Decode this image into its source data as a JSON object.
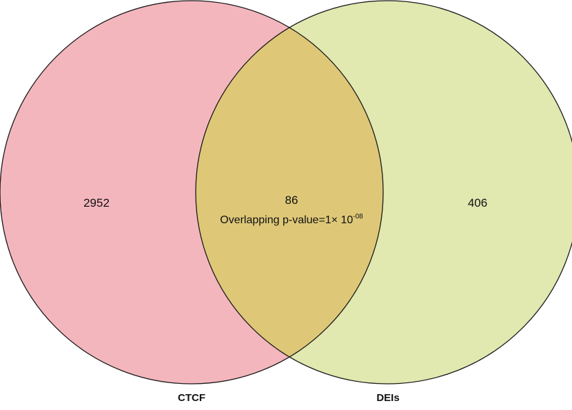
{
  "sets": {
    "left": {
      "label": "CTCF",
      "only_count": "2952",
      "color": "#f4b6bd"
    },
    "right": {
      "label": "DEIs",
      "only_count": "406",
      "color": "#e1e8b0"
    }
  },
  "overlap": {
    "count": "86",
    "pvalue_prefix": "Overlapping p-value=1× 10",
    "pvalue_exponent": "-08",
    "color": "#dec878"
  },
  "outline_color": "#1a1a1a"
}
